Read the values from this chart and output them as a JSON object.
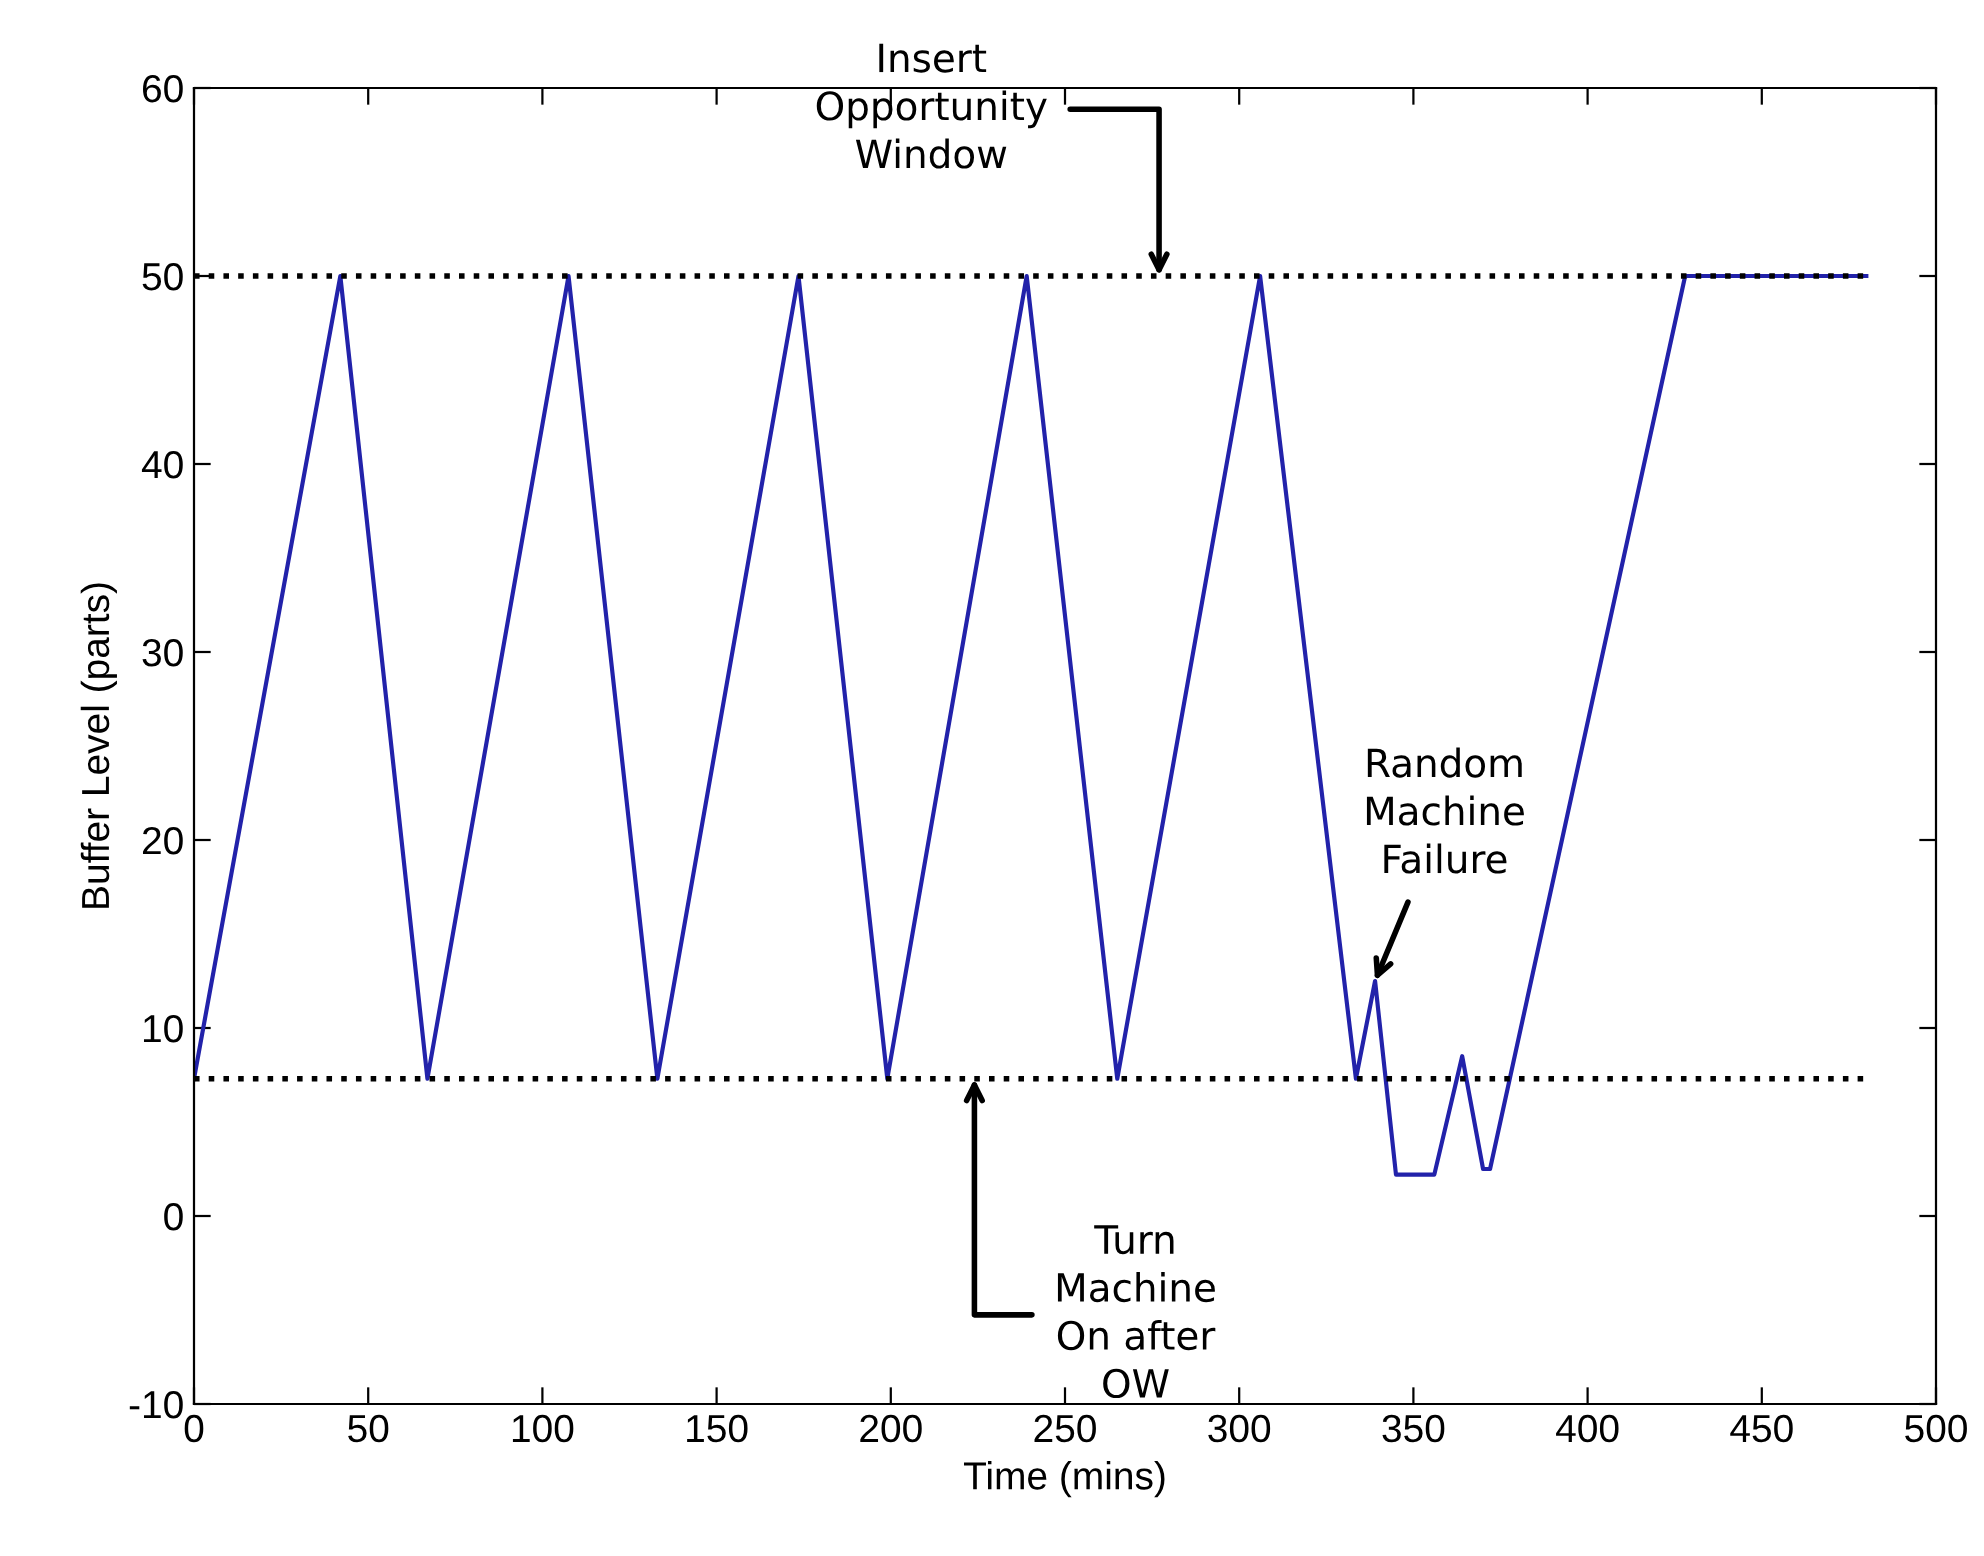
{
  "chart_data": {
    "type": "line",
    "xlabel": "Time (mins)",
    "ylabel": "Buffer Level (parts)",
    "x": [
      0,
      42,
      67,
      107.5,
      133,
      173.5,
      199,
      239,
      265,
      306,
      333.5,
      339,
      345,
      356,
      364,
      370,
      372,
      428,
      480
    ],
    "series": [
      {
        "color": "#2222aa",
        "values": [
          7.3,
          50,
          7.3,
          50,
          7.3,
          50,
          7.3,
          50,
          7.3,
          50,
          7.3,
          12.5,
          2.2,
          2.2,
          8.5,
          2.5,
          2.5,
          50,
          50
        ]
      }
    ],
    "ref_lines": [
      {
        "axis": "y",
        "value": 50,
        "color": "#000000",
        "line_style": "dotted"
      },
      {
        "axis": "y",
        "value": 7.3,
        "color": "#000000",
        "line_style": "dotted"
      }
    ],
    "annotations": [
      {
        "text": "Insert\nOpportunity\nWindow",
        "x": 277,
        "y": 50
      },
      {
        "text": "Turn\nMachine\nOn after\nOW",
        "x": 224,
        "y": 7.3
      },
      {
        "text": "Random\nMachine\nFailure",
        "x": 339,
        "y": 12.5
      }
    ],
    "xlim": [
      0,
      500
    ],
    "ylim": [
      -10,
      60
    ],
    "xticks": [
      0,
      50,
      100,
      150,
      200,
      250,
      300,
      350,
      400,
      450,
      500
    ],
    "yticks": [
      -10,
      0,
      10,
      20,
      30,
      40,
      50,
      60
    ],
    "grid": false,
    "legend": false,
    "marker": "none",
    "line_style": "solid"
  }
}
